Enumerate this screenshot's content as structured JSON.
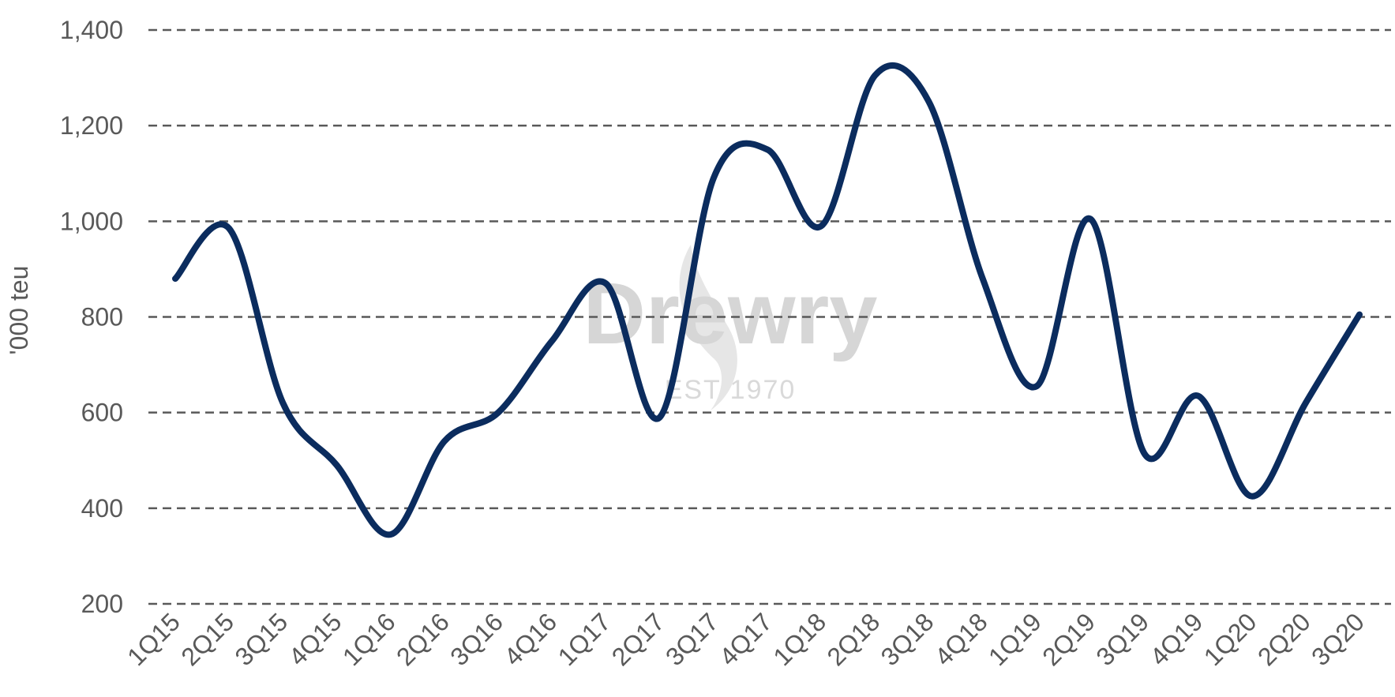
{
  "chart_data": {
    "type": "line",
    "categories": [
      "1Q15",
      "2Q15",
      "3Q15",
      "4Q15",
      "1Q16",
      "2Q16",
      "3Q16",
      "4Q16",
      "1Q17",
      "2Q17",
      "3Q17",
      "4Q17",
      "1Q18",
      "2Q18",
      "3Q18",
      "4Q18",
      "1Q19",
      "2Q19",
      "3Q19",
      "4Q19",
      "1Q20",
      "2Q20",
      "3Q20"
    ],
    "series": [
      {
        "values": [
          880,
          985,
          620,
          490,
          345,
          540,
          600,
          750,
          870,
          590,
          1090,
          1150,
          990,
          1305,
          1250,
          880,
          655,
          1005,
          515,
          635,
          425,
          620,
          805
        ],
        "color": "#0b2c5e"
      }
    ],
    "title": "",
    "xlabel": "",
    "ylabel": "'000 teu",
    "ylim": [
      200,
      1400
    ],
    "yticks": [
      "200",
      "400",
      "600",
      "800",
      "1,000",
      "1,200",
      "1,400"
    ],
    "ytick_values": [
      200,
      400,
      600,
      800,
      1000,
      1200,
      1400
    ],
    "grid": true,
    "gridline_style": "dashed",
    "legend": "none"
  },
  "watermark": {
    "brand": "Drewry",
    "est": "EST 1970"
  }
}
